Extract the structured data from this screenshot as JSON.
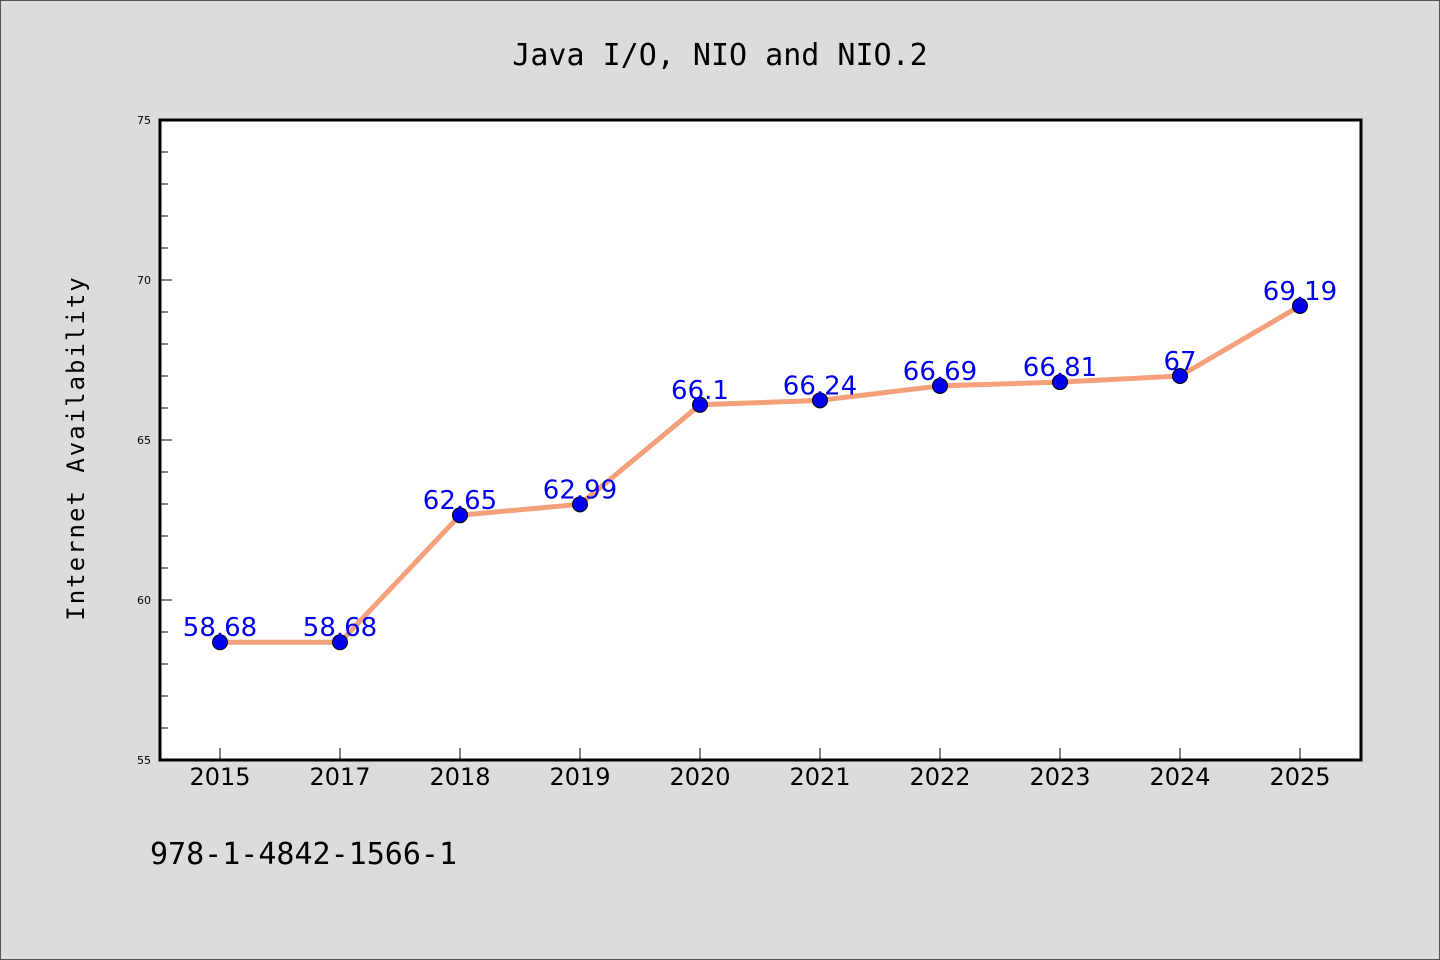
{
  "chart_data": {
    "type": "line",
    "title": "Java I/O, NIO and NIO.2",
    "xlabel": "",
    "ylabel": "Internet Availability",
    "categories": [
      "2015",
      "2017",
      "2018",
      "2019",
      "2020",
      "2021",
      "2022",
      "2023",
      "2024",
      "2025"
    ],
    "series": [
      {
        "values": [
          58.68,
          58.68,
          62.65,
          62.99,
          66.1,
          66.24,
          66.69,
          66.81,
          67,
          69.19
        ],
        "data_labels": [
          "58.68",
          "58.68",
          "62.65",
          "62.99",
          "66.1",
          "66.24",
          "66.69",
          "66.81",
          "67",
          "69.19"
        ]
      }
    ],
    "ylim": [
      55,
      75
    ],
    "yticks": [
      "55",
      "60",
      "65",
      "70",
      "75"
    ],
    "grid": false,
    "legend": "none",
    "colors": {
      "line": "#f4a07a",
      "marker": "#0000ee",
      "label": "#0000ee",
      "background": "#dcdcdc",
      "plot_area": "#ffffff"
    }
  },
  "footer_text": "978-1-4842-1566-1"
}
